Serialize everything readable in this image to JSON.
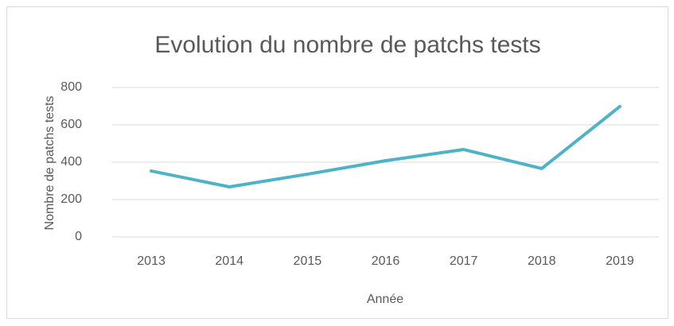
{
  "chart_data": {
    "type": "line",
    "title": "Evolution du nombre de patchs tests",
    "x_label": "Année",
    "y_label": "Nombre de patchs tests",
    "categories": [
      "2013",
      "2014",
      "2015",
      "2016",
      "2017",
      "2018",
      "2019"
    ],
    "series": [
      {
        "name": "Nombre de patchs tests",
        "color": "#4eb3c6",
        "values": [
          353,
          268,
          336,
          408,
          468,
          366,
          698
        ]
      }
    ],
    "ylim": [
      0,
      800
    ],
    "yticks": [
      0,
      200,
      400,
      600,
      800
    ],
    "grid": true
  }
}
